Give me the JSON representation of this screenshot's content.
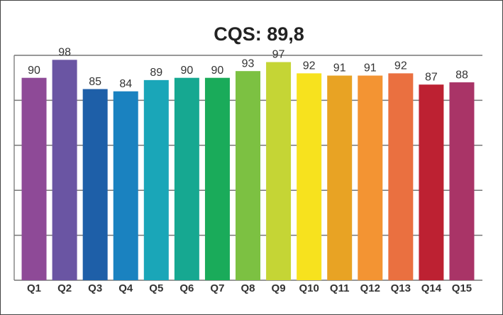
{
  "chart_data": {
    "type": "bar",
    "title": "CQS: 89,8",
    "categories": [
      "Q1",
      "Q2",
      "Q3",
      "Q4",
      "Q5",
      "Q6",
      "Q7",
      "Q8",
      "Q9",
      "Q10",
      "Q11",
      "Q12",
      "Q13",
      "Q14",
      "Q15"
    ],
    "values": [
      90,
      98,
      85,
      84,
      89,
      90,
      90,
      93,
      97,
      92,
      91,
      91,
      92,
      87,
      88
    ],
    "colors": [
      "#8e4a97",
      "#6a55a3",
      "#1e5fa8",
      "#1a82c0",
      "#1aa6b8",
      "#16a891",
      "#1aab5a",
      "#7cc142",
      "#c5d535",
      "#f7e21e",
      "#e8a324",
      "#f39433",
      "#ea7040",
      "#bd2132",
      "#a93467"
    ],
    "ylim": [
      0,
      100
    ],
    "yticks": [
      0,
      20,
      40,
      60,
      80,
      100
    ],
    "grid": true
  }
}
